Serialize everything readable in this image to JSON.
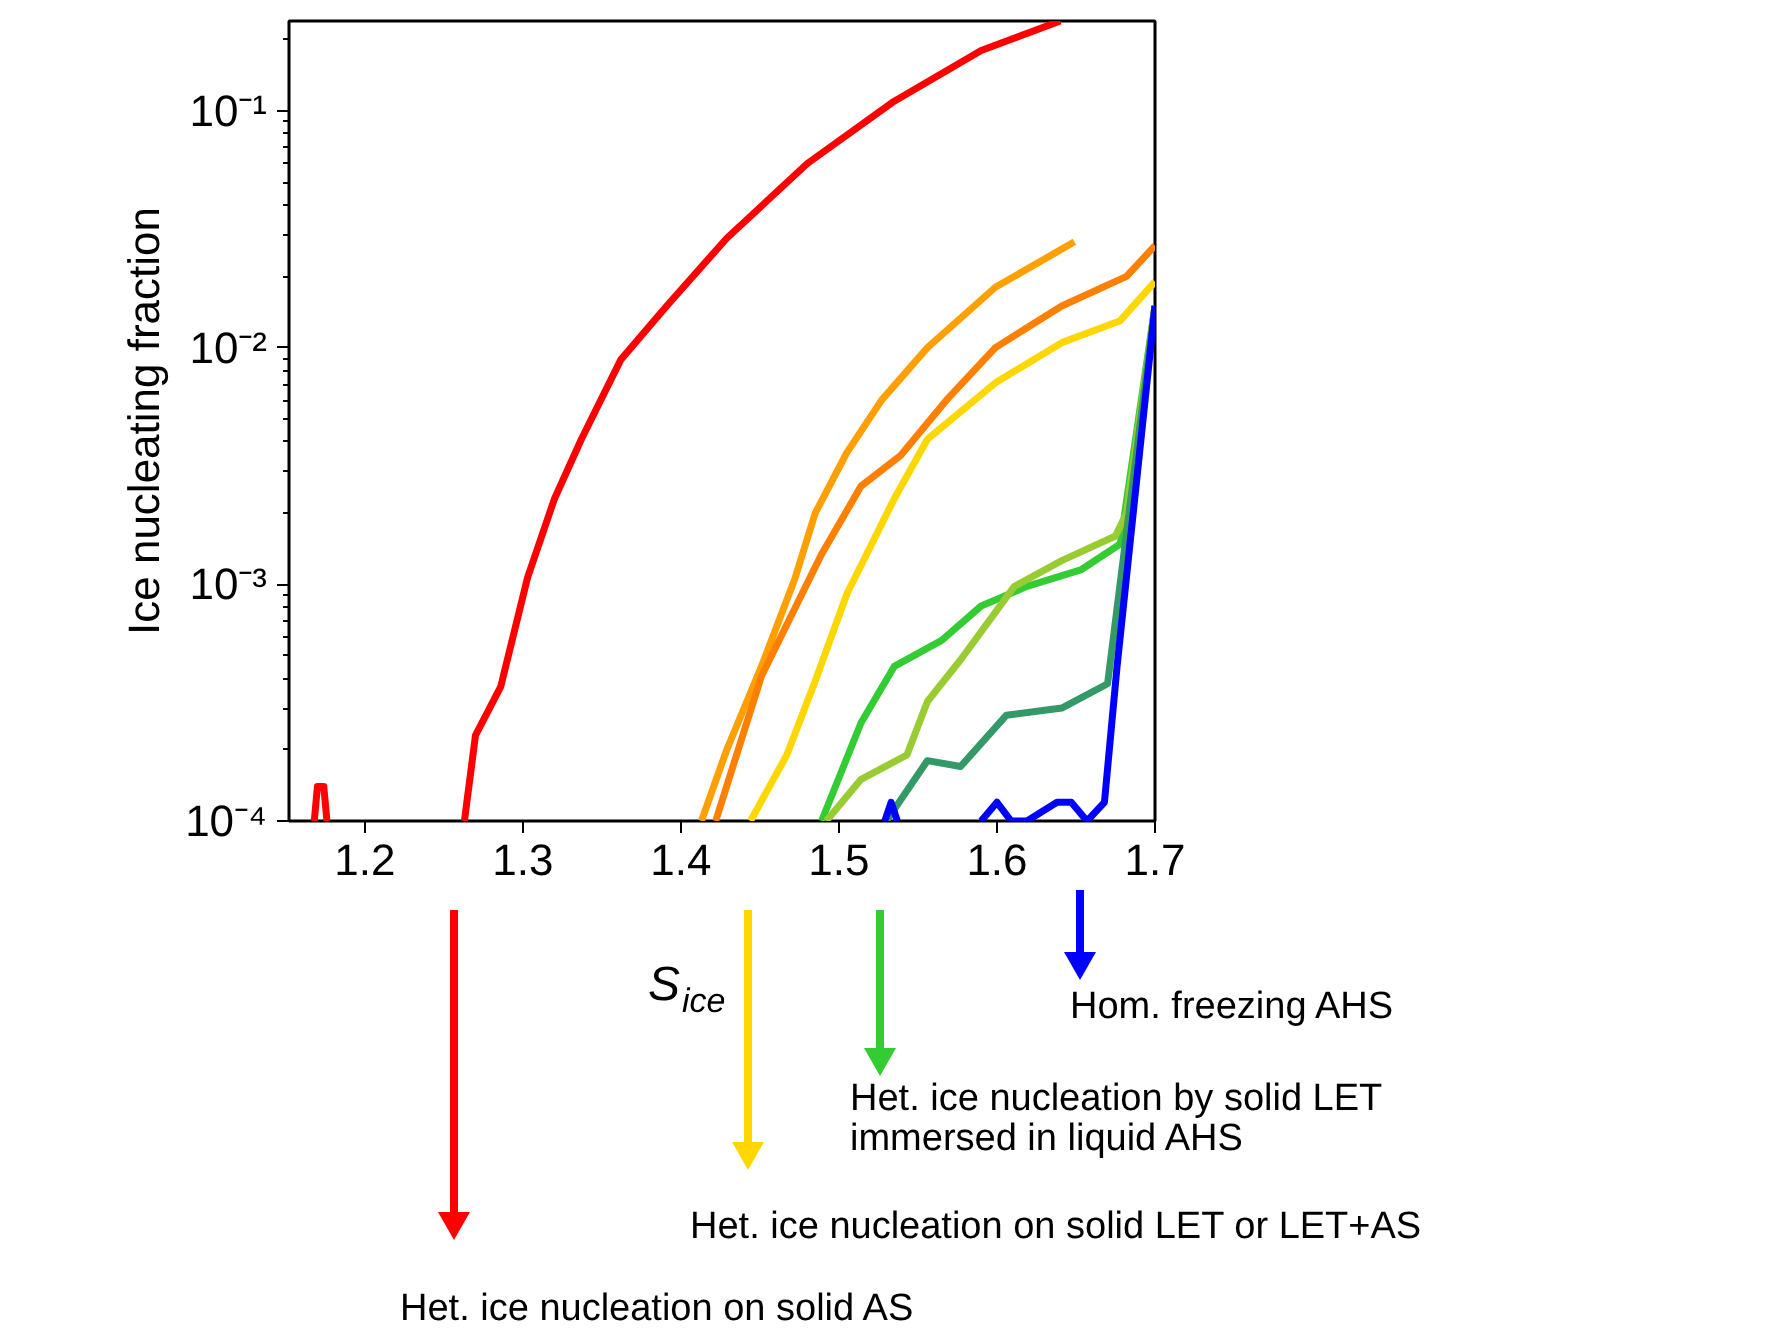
{
  "chart_data": {
    "type": "line",
    "xlabel": "S$_{ice}$",
    "ylabel": "Ice nucleating fraction",
    "log": "y",
    "grid": false,
    "line_style": "solid",
    "xlim": [
      1.152,
      1.7
    ],
    "ylim": [
      0.0001,
      0.24
    ],
    "xticks": [
      1.2,
      1.3,
      1.4,
      1.5,
      1.6,
      1.7
    ],
    "yticks": [
      {
        "value": 0.0001,
        "label": "10⁻⁴"
      },
      {
        "value": 0.001,
        "label": "10⁻³"
      },
      {
        "value": 0.01,
        "label": "10⁻²"
      },
      {
        "value": 0.1,
        "label": "10⁻¹"
      }
    ],
    "series": [
      {
        "color": "#ff0000",
        "x": [
          1.168,
          1.17,
          1.174,
          1.176,
          1.2,
          1.263,
          1.27,
          1.286,
          1.303,
          1.32,
          1.337,
          1.362,
          1.391,
          1.429,
          1.48,
          1.535,
          1.59,
          1.64
        ],
        "values": [
          0.0001,
          0.00014,
          0.00014,
          0.0001,
          null,
          0.0001,
          0.00023,
          0.00037,
          0.00107,
          0.0023,
          0.0041,
          0.0089,
          0.015,
          0.029,
          0.06,
          0.11,
          0.18,
          0.24
        ]
      },
      {
        "color": "#ffa000",
        "x": [
          1.413,
          1.429,
          1.451,
          1.472,
          1.485,
          1.505,
          1.527,
          1.556,
          1.599,
          1.649
        ],
        "values": [
          0.0001,
          0.0002,
          0.00045,
          0.00105,
          0.002,
          0.0036,
          0.006,
          0.01,
          0.018,
          0.028
        ]
      },
      {
        "color": "#ff8000",
        "x": [
          1.422,
          1.451,
          1.489,
          1.514,
          1.539,
          1.568,
          1.599,
          1.641,
          1.682,
          1.7
        ],
        "values": [
          0.0001,
          0.00041,
          0.00134,
          0.0026,
          0.0035,
          0.006,
          0.01,
          0.015,
          0.02,
          0.027
        ]
      },
      {
        "color": "#ffd700",
        "x": [
          1.444,
          1.467,
          1.485,
          1.505,
          1.535,
          1.556,
          1.599,
          1.641,
          1.678,
          1.7
        ],
        "values": [
          0.0001,
          0.00019,
          0.00039,
          0.00091,
          0.0023,
          0.0041,
          0.0071,
          0.0105,
          0.013,
          0.019
        ]
      },
      {
        "color": "#33cc33",
        "x": [
          1.489,
          1.514,
          1.535,
          1.565,
          1.59,
          1.619,
          1.653,
          1.678,
          1.7
        ],
        "values": [
          0.0001,
          0.00026,
          0.00045,
          0.00058,
          0.00081,
          0.00098,
          0.00115,
          0.00148,
          0.015
        ]
      },
      {
        "color": "#99cc33",
        "x": [
          1.492,
          1.514,
          1.543,
          1.556,
          1.577,
          1.611,
          1.641,
          1.675,
          1.682,
          1.7
        ],
        "values": [
          0.0001,
          0.00015,
          0.00019,
          0.00032,
          0.00048,
          0.00098,
          0.00126,
          0.0016,
          0.002,
          0.015
        ]
      },
      {
        "color": "#339966",
        "x": [
          1.53,
          1.556,
          1.577,
          1.606,
          1.641,
          1.67,
          1.7
        ],
        "values": [
          0.0001,
          0.00018,
          0.00017,
          0.00028,
          0.0003,
          0.00038,
          0.015
        ]
      },
      {
        "color": "#0000ff",
        "x": [
          1.529,
          1.533,
          1.537,
          1.56,
          1.59,
          1.6,
          1.609,
          1.619,
          1.638,
          1.647,
          1.657,
          1.668,
          1.676,
          1.7
        ],
        "values": [
          0.0001,
          0.00012,
          0.0001,
          null,
          0.0001,
          0.00012,
          0.0001,
          0.0001,
          0.00012,
          0.00012,
          0.0001,
          0.00012,
          0.00045,
          0.015
        ]
      }
    ],
    "annotations": [
      "Hom. freezing AHS",
      "Het. ice nucleation by solid LET\nimmersed in liquid AHS",
      "Het. ice nucleation on solid LET or LET+AS",
      "Het. ice nucleation on solid AS"
    ]
  }
}
